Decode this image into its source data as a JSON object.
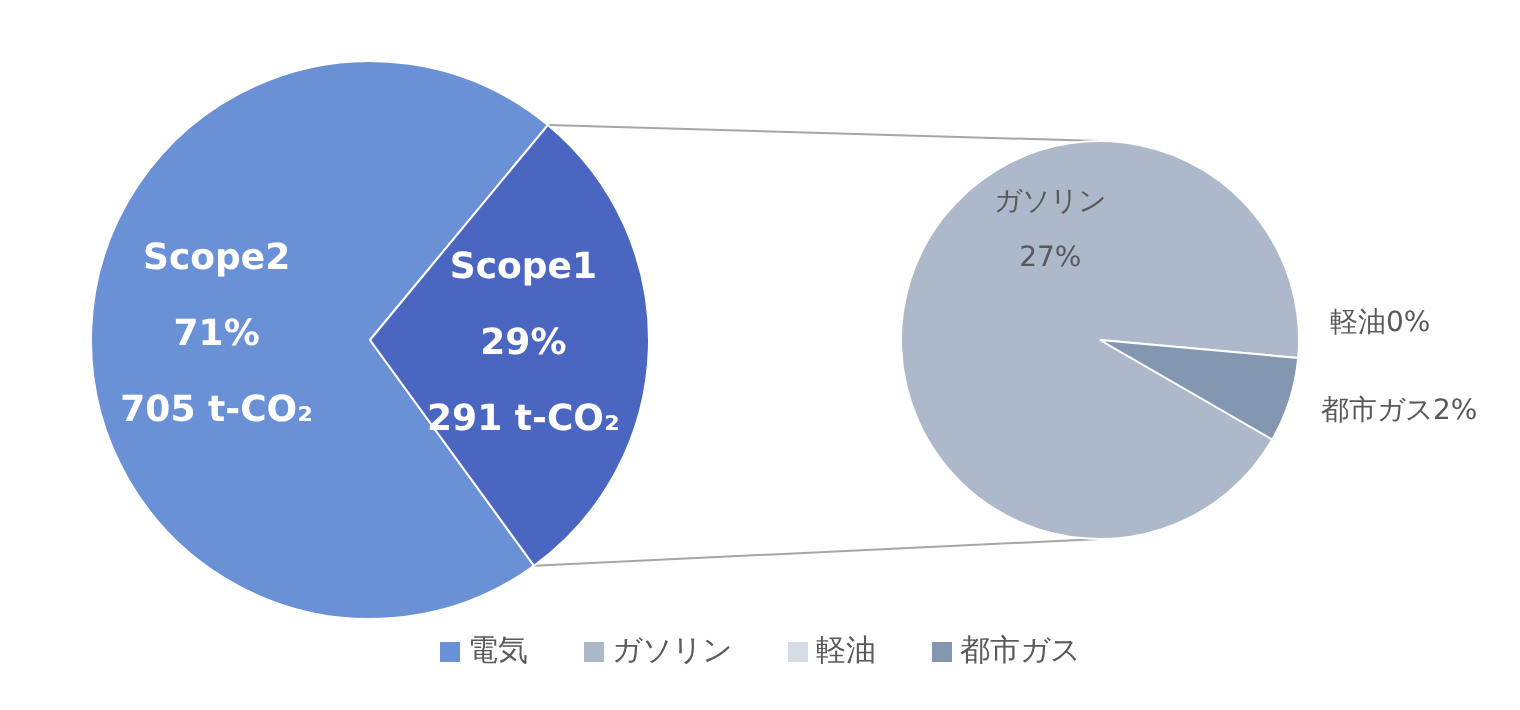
{
  "chart_data": [
    {
      "type": "pie",
      "categories": [
        "電気",
        null
      ],
      "values": [
        71,
        29
      ],
      "colors": [
        "#6a90d6",
        "#4b66c1"
      ],
      "value_labels": [
        "Scope2\n71%\n705 t-CO₂",
        "Scope1\n29%\n291 t-CO₂"
      ],
      "legend": "bottom"
    },
    {
      "type": "pie",
      "categories": [
        "ガソリン",
        "軽油",
        "都市ガス"
      ],
      "values": [
        27,
        0,
        2
      ],
      "colors": [
        "#adb9ca",
        "#d6dce5",
        "#8497b0"
      ],
      "value_labels": [
        "ガソリン\n27%",
        "軽油0%",
        "都市ガス2%"
      ],
      "legend": "bottom"
    }
  ]
}
